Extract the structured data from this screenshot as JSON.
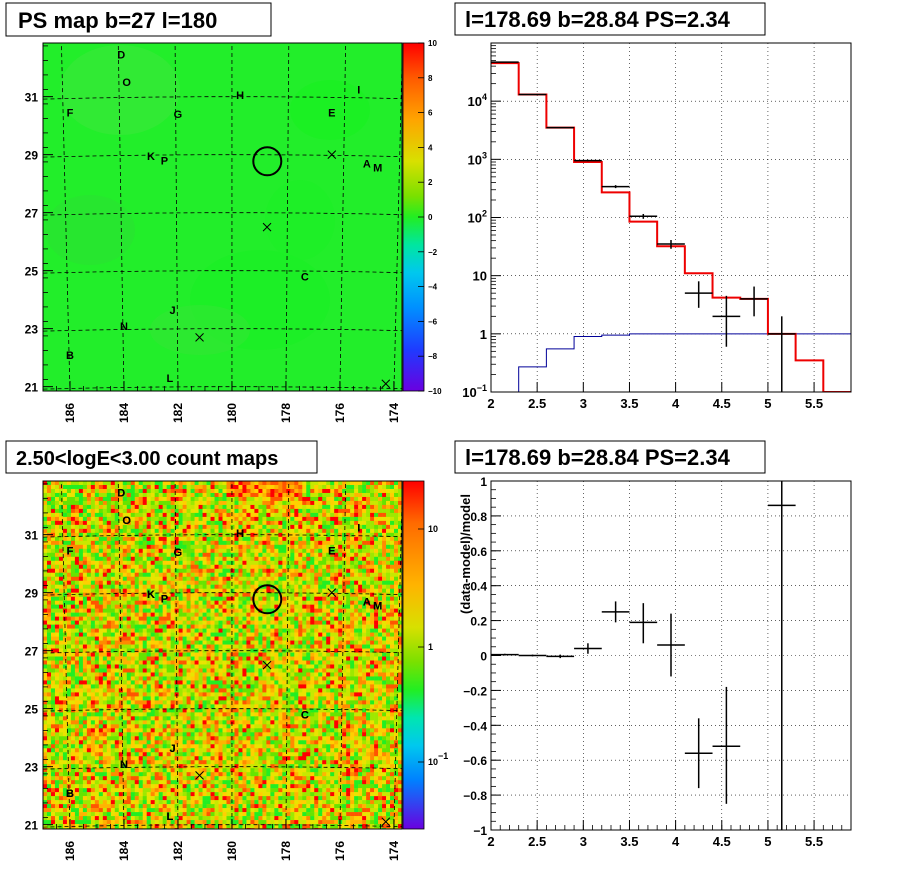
{
  "panels": {
    "map_title": "PS map b=27 l=180",
    "spectrum_title": "l=178.69 b=28.84 PS=2.34",
    "count_title": "2.50<logE<3.00 count maps",
    "residual_title": "l=178.69 b=28.84 PS=2.34"
  },
  "colors": {
    "map_base": "#22ee2a",
    "data": "#000000",
    "model": "#ee0000",
    "background_model": "#000099"
  },
  "chart_data": [
    {
      "type": "heatmap",
      "title": "PS map b=27 l=180",
      "x_tick_labels": [
        "186",
        "184",
        "182",
        "180",
        "178",
        "176",
        "174"
      ],
      "y_tick_labels": [
        "21",
        "23",
        "25",
        "27",
        "29",
        "31"
      ],
      "colorbar": {
        "labels": [
          "10",
          "8",
          "6",
          "4",
          "2",
          "0",
          "−2",
          "−4",
          "−6",
          "−8",
          "−10"
        ],
        "range": [
          -10,
          10
        ]
      },
      "source_labels": [
        {
          "text": "D",
          "l": 184.1,
          "b": 32.45
        },
        {
          "text": "O",
          "l": 183.9,
          "b": 31.5
        },
        {
          "text": "H",
          "l": 179.7,
          "b": 31.05
        },
        {
          "text": "I",
          "l": 175.3,
          "b": 31.25
        },
        {
          "text": "F",
          "l": 186.0,
          "b": 30.45
        },
        {
          "text": "G",
          "l": 182.0,
          "b": 30.4
        },
        {
          "text": "E",
          "l": 176.3,
          "b": 30.45
        },
        {
          "text": "K",
          "l": 183.0,
          "b": 28.95
        },
        {
          "text": "P",
          "l": 182.5,
          "b": 28.8
        },
        {
          "text": "A",
          "l": 175.0,
          "b": 28.7
        },
        {
          "text": "M",
          "l": 174.6,
          "b": 28.55
        },
        {
          "text": "C",
          "l": 177.3,
          "b": 24.8
        },
        {
          "text": "J",
          "l": 182.2,
          "b": 23.65
        },
        {
          "text": "N",
          "l": 184.0,
          "b": 23.1
        },
        {
          "text": "B",
          "l": 186.0,
          "b": 22.1
        },
        {
          "text": "L",
          "l": 182.3,
          "b": 21.3
        }
      ],
      "candidate_circle": {
        "l": 178.69,
        "b": 28.84
      },
      "cross_markers": [
        {
          "l": 178.7,
          "b": 26.5
        },
        {
          "l": 176.3,
          "b": 29.0
        },
        {
          "l": 181.2,
          "b": 22.7
        },
        {
          "l": 174.3,
          "b": 21.1
        }
      ]
    },
    {
      "type": "line",
      "title": "l=178.69 b=28.84 PS=2.34",
      "y_scale": "log",
      "xlim": [
        2.0,
        5.9
      ],
      "ylim": [
        0.1,
        100000
      ],
      "x_tick_labels": [
        "2",
        "2.5",
        "3",
        "3.5",
        "4",
        "4.5",
        "5",
        "5.5"
      ],
      "y_tick_labels": [
        "10^-1",
        "1",
        "10",
        "10^2",
        "10^3",
        "10^4"
      ],
      "grid": true,
      "bin_edges": [
        2.0,
        2.3,
        2.6,
        2.9,
        3.2,
        3.5,
        3.8,
        4.1,
        4.4,
        4.7,
        5.0,
        5.3,
        5.6,
        5.9
      ],
      "series": [
        {
          "values": [
            45000,
            13000,
            3500,
            900,
            270,
            85,
            32,
            11,
            4.2,
            4.0,
            1.0,
            0.35,
            0.1
          ]
        },
        {
          "values": [
            0.1,
            0.27,
            0.55,
            0.9,
            0.95,
            1.0,
            1.0,
            1.0,
            1.0,
            1.0,
            1.0,
            1.0,
            1.0
          ]
        }
      ],
      "data_points": [
        {
          "x": 2.15,
          "y": 47000,
          "xerr": 0.15,
          "ylo": 46700,
          "yhi": 47300
        },
        {
          "x": 2.45,
          "y": 13000,
          "xerr": 0.15,
          "ylo": 12900,
          "yhi": 13100
        },
        {
          "x": 2.75,
          "y": 3500,
          "xerr": 0.15,
          "ylo": 3450,
          "yhi": 3550
        },
        {
          "x": 3.05,
          "y": 950,
          "xerr": 0.15,
          "ylo": 920,
          "yhi": 980
        },
        {
          "x": 3.35,
          "y": 340,
          "xerr": 0.15,
          "ylo": 320,
          "yhi": 360
        },
        {
          "x": 3.65,
          "y": 105,
          "xerr": 0.15,
          "ylo": 95,
          "yhi": 115
        },
        {
          "x": 3.95,
          "y": 35,
          "xerr": 0.15,
          "ylo": 29,
          "yhi": 41
        },
        {
          "x": 4.25,
          "y": 5.0,
          "xerr": 0.15,
          "ylo": 2.8,
          "yhi": 8.0
        },
        {
          "x": 4.55,
          "y": 2.0,
          "xerr": 0.15,
          "ylo": 0.6,
          "yhi": 4.5
        },
        {
          "x": 4.85,
          "y": 4.0,
          "xerr": 0.15,
          "ylo": 2.0,
          "yhi": 6.5
        },
        {
          "x": 5.15,
          "y": 1.0,
          "xerr": 0.15,
          "ylo": 0.1,
          "yhi": 2.0
        }
      ]
    },
    {
      "type": "heatmap",
      "title": "2.50<logE<3.00 count maps",
      "x_tick_labels": [
        "186",
        "184",
        "182",
        "180",
        "178",
        "176",
        "174"
      ],
      "y_tick_labels": [
        "21",
        "23",
        "25",
        "27",
        "29",
        "31"
      ],
      "colorbar": {
        "labels": [
          "10",
          "1",
          "10^-1"
        ],
        "scale": "log"
      }
    },
    {
      "type": "scatter",
      "title": "l=178.69 b=28.84 PS=2.34",
      "ylabel": "(data-model)/model",
      "xlim": [
        2.0,
        5.9
      ],
      "ylim": [
        -1.0,
        1.0
      ],
      "x_tick_labels": [
        "2",
        "2.5",
        "3",
        "3.5",
        "4",
        "4.5",
        "5",
        "5.5"
      ],
      "y_tick_labels": [
        "1",
        "0.8",
        "0.6",
        "0.4",
        "0.2",
        "0",
        "−0.2",
        "−0.4",
        "−0.6",
        "−0.8",
        "−1"
      ],
      "grid": true,
      "points": [
        {
          "x": 2.15,
          "y": 0.005,
          "xerr": 0.15,
          "ylo": 0.0,
          "yhi": 0.01
        },
        {
          "x": 2.45,
          "y": 0.0,
          "xerr": 0.15,
          "ylo": -0.005,
          "yhi": 0.005
        },
        {
          "x": 2.75,
          "y": -0.005,
          "xerr": 0.15,
          "ylo": -0.015,
          "yhi": 0.005
        },
        {
          "x": 3.05,
          "y": 0.04,
          "xerr": 0.15,
          "ylo": 0.01,
          "yhi": 0.07
        },
        {
          "x": 3.35,
          "y": 0.25,
          "xerr": 0.15,
          "ylo": 0.19,
          "yhi": 0.31
        },
        {
          "x": 3.65,
          "y": 0.19,
          "xerr": 0.15,
          "ylo": 0.07,
          "yhi": 0.3
        },
        {
          "x": 3.95,
          "y": 0.06,
          "xerr": 0.15,
          "ylo": -0.12,
          "yhi": 0.24
        },
        {
          "x": 4.25,
          "y": -0.56,
          "xerr": 0.15,
          "ylo": -0.76,
          "yhi": -0.36
        },
        {
          "x": 4.55,
          "y": -0.52,
          "xerr": 0.15,
          "ylo": -0.85,
          "yhi": -0.18
        },
        {
          "x": 5.15,
          "y": 0.86,
          "xerr": 0.15,
          "ylo": -1.0,
          "yhi": 1.0
        }
      ]
    }
  ]
}
